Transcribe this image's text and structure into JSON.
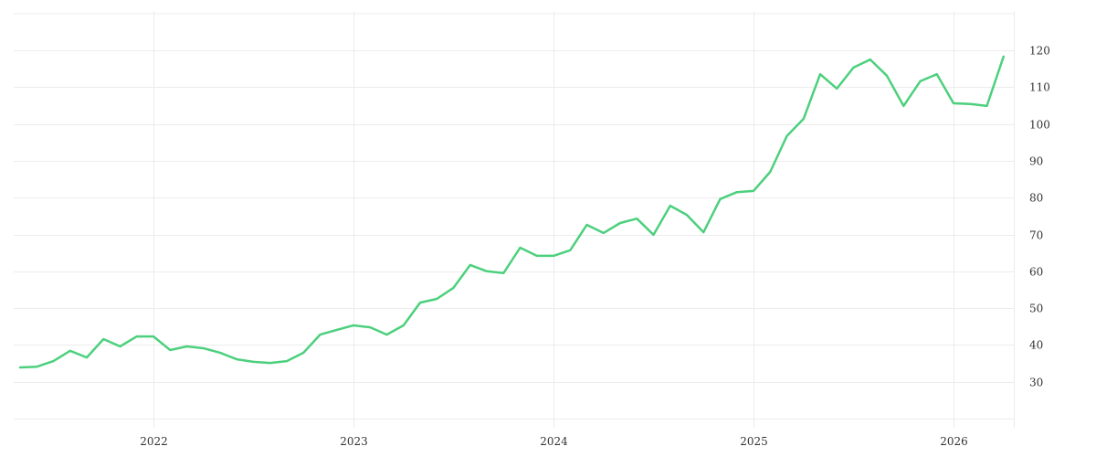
{
  "chart_data": {
    "type": "line",
    "title": "",
    "xlabel": "",
    "ylabel": "",
    "ylim": [
      20,
      130
    ],
    "y_ticks": [
      30,
      40,
      50,
      60,
      70,
      80,
      90,
      100,
      110,
      120
    ],
    "x_tick_labels": [
      "2022",
      "2023",
      "2024",
      "2025",
      "2026"
    ],
    "grid": true,
    "legend": "none",
    "y_axis_position": "right",
    "x_start": "2021-05",
    "x_end": "2026-04",
    "x_interval": "monthly",
    "series": [
      {
        "name": "value",
        "color": "#4cd07d",
        "values": [
          33.9,
          34.1,
          35.6,
          38.4,
          36.6,
          41.6,
          39.6,
          42.3,
          42.3,
          38.6,
          39.6,
          39.1,
          37.9,
          36.1,
          35.4,
          35.1,
          35.6,
          37.9,
          42.8,
          44.1,
          45.3,
          44.8,
          42.8,
          45.3,
          51.5,
          52.5,
          55.5,
          61.7,
          60.0,
          59.5,
          66.4,
          64.2,
          64.2,
          65.7,
          72.6,
          70.4,
          73.1,
          74.3,
          69.9,
          77.8,
          75.3,
          70.6,
          79.6,
          81.5,
          81.8,
          87.0,
          96.7,
          101.4,
          113.5,
          109.6,
          115.3,
          117.5,
          113.1,
          104.9,
          111.6,
          113.5,
          105.6,
          105.4,
          104.9,
          118.3
        ]
      }
    ]
  },
  "colors": {
    "line": "#4cd07d",
    "grid": "#ececec",
    "text": "#333333",
    "background": "#ffffff"
  }
}
